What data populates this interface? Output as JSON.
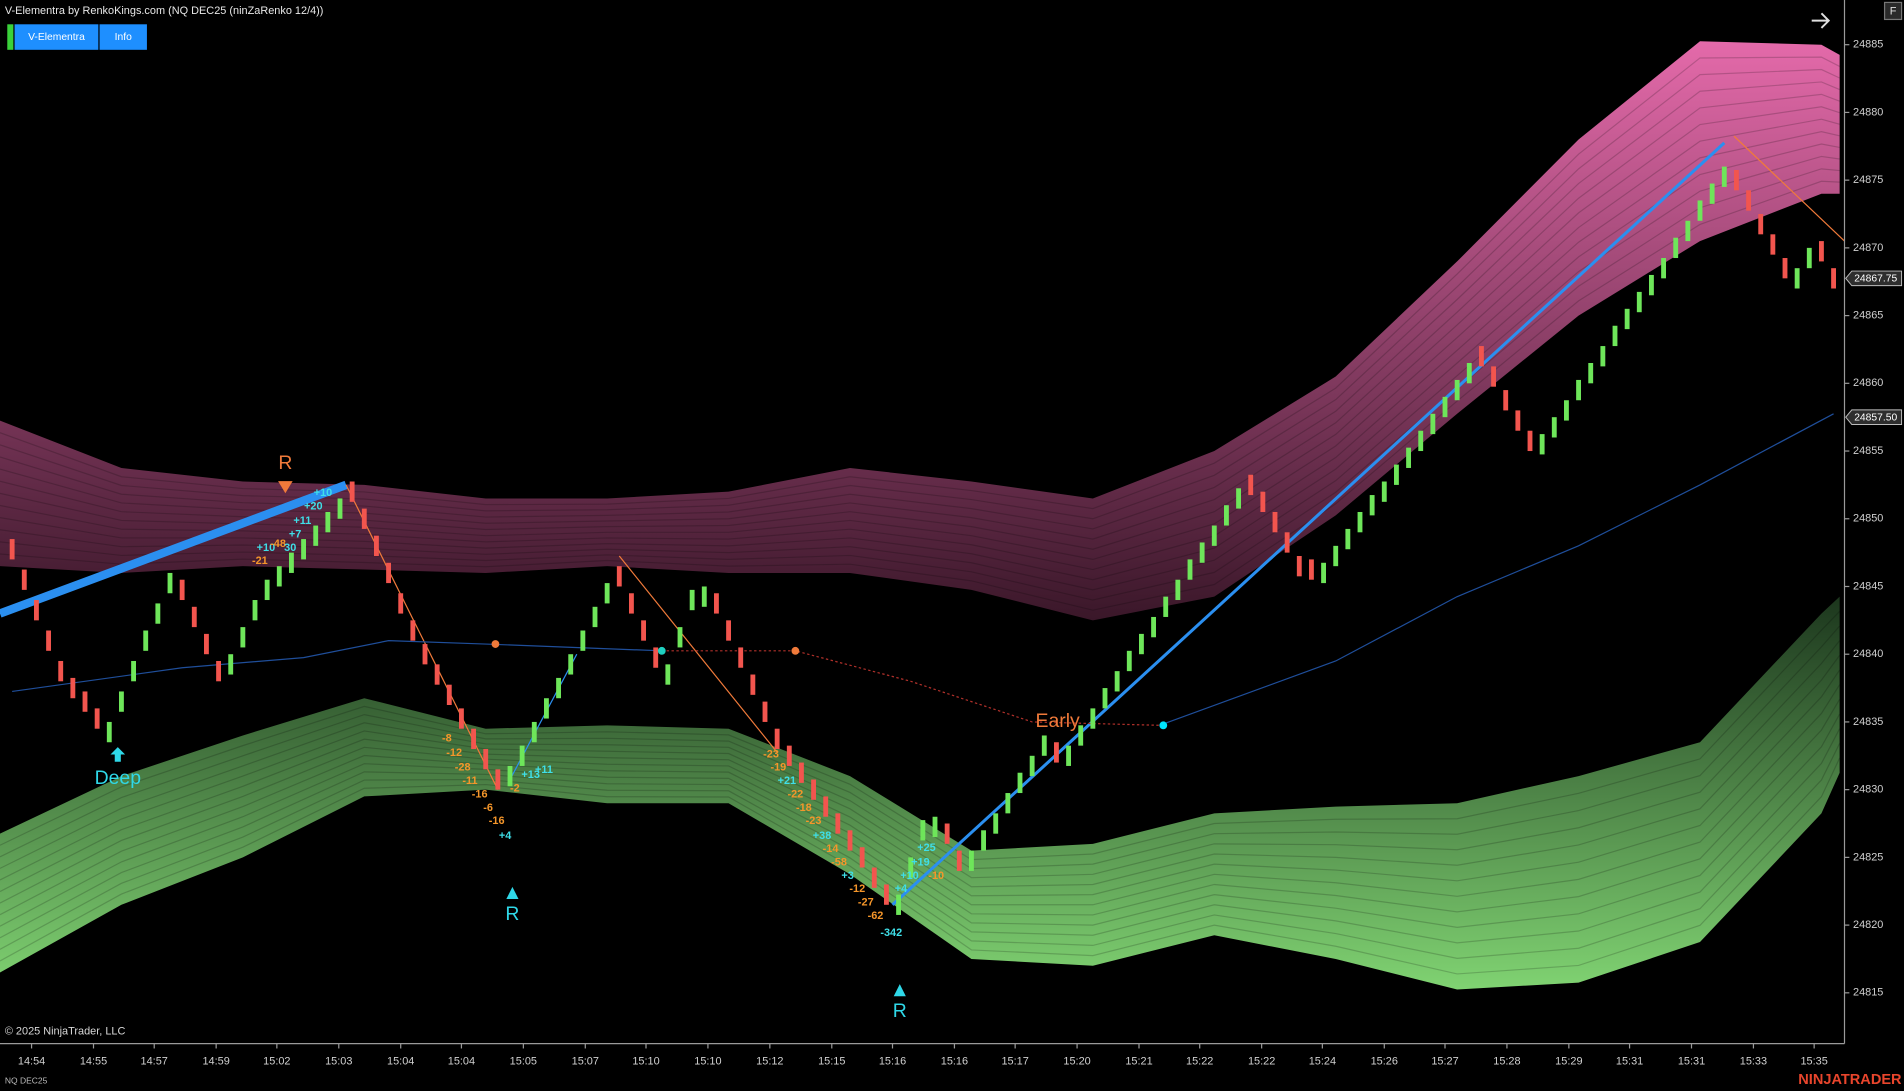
{
  "header": {
    "title": "V-Elementra by RenkoKings.com (NQ DEC25 (ninZaRenko 12/4))",
    "buttons": [
      "V-Elementra",
      "Info"
    ],
    "corner_button": "F"
  },
  "footer": {
    "copyright": "© 2025 NinjaTrader, LLC",
    "instrument": "NQ DEC25",
    "brand": "NINJATRADER"
  },
  "chart_data": {
    "type": "candlestick",
    "up_color": "#6ee65a",
    "down_color": "#f2554e",
    "xlim": [
      -1,
      150.9
    ],
    "ylim": [
      24811.25,
      24888.3
    ],
    "open": [
      24848.5,
      24846.25,
      24844,
      24841.75,
      24839.5,
      24838.25,
      24837.25,
      24836,
      24833.5,
      24835.75,
      24838,
      24840.25,
      24842.25,
      24844.5,
      24845.5,
      24843.5,
      24841.5,
      24839.5,
      24838.5,
      24840.5,
      24842.5,
      24844,
      24845,
      24846,
      24847,
      24848,
      24849,
      24850,
      24852.75,
      24850.75,
      24848.75,
      24846.75,
      24844.5,
      24842.5,
      24840.75,
      24839.25,
      24837.75,
      24836,
      24834.5,
      24833,
      24831.5,
      24830.25,
      24831.75,
      24833.5,
      24835.25,
      24836.75,
      24838.5,
      24840.25,
      24842,
      24843.75,
      24846.5,
      24844.5,
      24842.5,
      24840.5,
      24837.75,
      24840.5,
      24843.25,
      24843.5,
      24844.5,
      24842.5,
      24840.5,
      24838.5,
      24836.5,
      24834.5,
      24833.25,
      24832,
      24830.75,
      24829.5,
      24828.25,
      24827,
      24825.75,
      24824.25,
      24823,
      24820.75,
      24823.5,
      24826.25,
      24826.5,
      24827.5,
      24825.5,
      24824,
      24825.5,
      24826.75,
      24828.25,
      24829.75,
      24831,
      24832.5,
      24833.5,
      24831.75,
      24833.25,
      24834.5,
      24836,
      24837.25,
      24838.75,
      24840,
      24841.25,
      24842.75,
      24844,
      24845.5,
      24846.75,
      24848,
      24849.5,
      24850.75,
      24853.25,
      24852,
      24850.5,
      24849,
      24847.25,
      24847,
      24845.25,
      24846.5,
      24847.75,
      24849,
      24850.25,
      24851.25,
      24852.5,
      24853.75,
      24855,
      24856.25,
      24857.5,
      24858.75,
      24860,
      24862.75,
      24861.25,
      24859.5,
      24858,
      24856.5,
      24854.75,
      24856,
      24857.25,
      24858.75,
      24860,
      24861.25,
      24862.75,
      24864,
      24865.25,
      24866.5,
      24867.75,
      24869.25,
      24870.5,
      24872,
      24873.25,
      24874.5,
      24875.75,
      24874.25,
      24872.5,
      24871,
      24869.25,
      24867,
      24868.5,
      24870.5,
      24868.5
    ],
    "close": [
      24847,
      24844.75,
      24842.5,
      24840.25,
      24838,
      24836.75,
      24835.75,
      24834.5,
      24835,
      24837.25,
      24839.5,
      24841.75,
      24843.75,
      24846,
      24844,
      24842,
      24840,
      24838,
      24840,
      24842,
      24844,
      24845.5,
      24846.5,
      24847.5,
      24848.5,
      24849.5,
      24850.5,
      24851.5,
      24851.25,
      24849.25,
      24847.25,
      24845.25,
      24843,
      24841,
      24839.25,
      24837.75,
      24836.25,
      24834.5,
      24833,
      24831.5,
      24830,
      24831.75,
      24833.25,
      24835,
      24836.75,
      24838.25,
      24840,
      24841.75,
      24843.5,
      24845.25,
      24845,
      24843,
      24841,
      24839,
      24839.25,
      24842,
      24844.75,
      24845,
      24843,
      24841,
      24839,
      24837,
      24835,
      24833,
      24831.75,
      24830.5,
      24829.25,
      24828,
      24826.75,
      24825.5,
      24824.25,
      24822.75,
      24821.5,
      24822.25,
      24825,
      24827.75,
      24828,
      24826,
      24824,
      24825.5,
      24827,
      24828.25,
      24829.75,
      24831.25,
      24832.5,
      24834,
      24832,
      24833.25,
      24834.75,
      24836,
      24837.5,
      24838.75,
      24840.25,
      24841.5,
      24842.75,
      24844.25,
      24845.5,
      24847,
      24848.25,
      24849.5,
      24851,
      24852.25,
      24851.75,
      24850.5,
      24849,
      24847.5,
      24845.75,
      24845.5,
      24846.75,
      24848,
      24849.25,
      24850.5,
      24851.75,
      24852.75,
      24854,
      24855.25,
      24856.5,
      24857.75,
      24859,
      24860.25,
      24861.5,
      24861.25,
      24859.75,
      24858,
      24856.5,
      24855,
      24856.25,
      24857.5,
      24858.75,
      24860.25,
      24861.5,
      24862.75,
      24864.25,
      24865.5,
      24866.75,
      24868,
      24869.25,
      24870.75,
      24872,
      24873.5,
      24874.75,
      24876,
      24874.25,
      24872.75,
      24871,
      24869.5,
      24867.75,
      24868.5,
      24870,
      24869,
      24867
    ],
    "yticks": [
      24815,
      24820,
      24825,
      24830,
      24835,
      24840,
      24845,
      24850,
      24855,
      24860,
      24865,
      24870,
      24875,
      24880,
      24885
    ],
    "xticks": [
      {
        "value": 1.6,
        "label": "14:54"
      },
      {
        "value": 6.7,
        "label": "14:55"
      },
      {
        "value": 11.7,
        "label": "14:57"
      },
      {
        "value": 16.8,
        "label": "14:59"
      },
      {
        "value": 21.8,
        "label": "15:02"
      },
      {
        "value": 26.9,
        "label": "15:03"
      },
      {
        "value": 32,
        "label": "15:04"
      },
      {
        "value": 37,
        "label": "15:04"
      },
      {
        "value": 42.1,
        "label": "15:05"
      },
      {
        "value": 47.2,
        "label": "15:07"
      },
      {
        "value": 52.2,
        "label": "15:10"
      },
      {
        "value": 57.3,
        "label": "15:10"
      },
      {
        "value": 62.4,
        "label": "15:12"
      },
      {
        "value": 67.5,
        "label": "15:15"
      },
      {
        "value": 72.5,
        "label": "15:16"
      },
      {
        "value": 77.6,
        "label": "15:16"
      },
      {
        "value": 82.6,
        "label": "15:17"
      },
      {
        "value": 87.7,
        "label": "15:20"
      },
      {
        "value": 92.8,
        "label": "15:21"
      },
      {
        "value": 97.8,
        "label": "15:22"
      },
      {
        "value": 102.9,
        "label": "15:22"
      },
      {
        "value": 107.9,
        "label": "15:24"
      },
      {
        "value": 113,
        "label": "15:26"
      },
      {
        "value": 118,
        "label": "15:27"
      },
      {
        "value": 123.1,
        "label": "15:28"
      },
      {
        "value": 128.2,
        "label": "15:29"
      },
      {
        "value": 133.2,
        "label": "15:31"
      },
      {
        "value": 138.3,
        "label": "15:31"
      },
      {
        "value": 143.4,
        "label": "15:33"
      },
      {
        "value": 148.4,
        "label": "15:35"
      }
    ],
    "price_markers": [
      24867.75,
      {
        "value": 24857.5,
        "label": "24857.50"
      }
    ],
    "band_x": [
      -1,
      9,
      19,
      29,
      39,
      49,
      59,
      69,
      79,
      89,
      99,
      109,
      119,
      129,
      139,
      149,
      150.5
    ],
    "bands": [
      {
        "colors": [
          "#e46aaa",
          "#3a1729"
        ],
        "upper": [
          24857.25,
          24853.75,
          24852.75,
          24852.5,
          24851.5,
          24851.5,
          24852,
          24853.75,
          24852.75,
          24851.5,
          24855,
          24860.5,
          24869,
          24878,
          24885.25,
          24885,
          24884.25
        ],
        "lower": [
          24846.5,
          24846,
          24846.5,
          24846.25,
          24846,
          24846.5,
          24846,
          24846,
          24844.75,
          24842.5,
          24844.25,
          24850.25,
          24857.75,
          24865,
          24870.5,
          24874,
          24874
        ]
      },
      {
        "colors": [
          "#1c361d",
          "#80d372"
        ],
        "upper": [
          24826.75,
          24831,
          24834,
          24836.75,
          24834.5,
          24834.75,
          24834.5,
          24831,
          24825.5,
          24826,
          24828.25,
          24828.75,
          24829,
          24831,
          24833.5,
          24843,
          24844.25
        ],
        "lower": [
          24816.5,
          24821.5,
          24825,
          24829.5,
          24830,
          24829,
          24829,
          24823.75,
          24817.5,
          24817,
          24819.25,
          24817.5,
          24815.25,
          24815.75,
          24818.75,
          24828.25,
          24831.25
        ]
      }
    ],
    "lines": [
      {
        "color": "#2b8ff0",
        "width": 7,
        "dashed": false,
        "x": [
          -1,
          27.5
        ],
        "y": [
          24843,
          24852.5
        ]
      },
      {
        "color": "#2b8ff0",
        "width": 2.5,
        "dashed": false,
        "x": [
          72.5,
          141
        ],
        "y": [
          24821.5,
          24877.75
        ]
      },
      {
        "color": "#2b8ff0",
        "width": 1,
        "dashed": false,
        "x": [
          41,
          46.5
        ],
        "y": [
          24830.75,
          24840
        ]
      },
      {
        "color": "#f07a3a",
        "width": 1,
        "dashed": false,
        "x": [
          27.5,
          40
        ],
        "y": [
          24852.5,
          24830
        ]
      },
      {
        "color": "#f07a3a",
        "width": 1,
        "dashed": false,
        "x": [
          50,
          63
        ],
        "y": [
          24847.25,
          24832.75
        ]
      },
      {
        "color": "#f07a3a",
        "width": 1,
        "dashed": false,
        "x": [
          141.8,
          150.9
        ],
        "y": [
          24878.25,
          24870.5
        ]
      },
      {
        "color": "#1f4e9a",
        "width": 1,
        "dashed": false,
        "x": [
          0,
          14,
          24,
          31,
          39,
          53.5
        ],
        "y": [
          24837.25,
          24839,
          24839.75,
          24841,
          24840.75,
          24840.25
        ]
      },
      {
        "color": "#b0302a",
        "width": 1,
        "dashed": true,
        "x": [
          53.5,
          64.5,
          74,
          84,
          94.5
        ],
        "y": [
          24840.25,
          24840.25,
          24838,
          24835,
          24834.75
        ]
      },
      {
        "color": "#1f4e9a",
        "width": 1,
        "dashed": false,
        "x": [
          94.5,
          109,
          119,
          129,
          139,
          150
        ],
        "y": [
          24834.75,
          24839.5,
          24844.25,
          24848,
          24852.5,
          24857.75
        ]
      }
    ],
    "dots": [
      {
        "color": "#f07a3a",
        "x": 39.8,
        "y": 24840.75
      },
      {
        "color": "#f07a3a",
        "x": 64.5,
        "y": 24840.25
      },
      {
        "color": "#1fd0c0",
        "x": 53.5,
        "y": 24840.25
      },
      {
        "color": "#00e5ff",
        "x": 94.8,
        "y": 24834.75
      }
    ],
    "annotations": [
      {
        "text": "R",
        "color": "#f07a3a"
      },
      {
        "text": "Deep",
        "color": "#2fd8e8"
      },
      {
        "text": "R",
        "color": "#2fd8e8"
      },
      {
        "text": "R",
        "color": "#2fd8e8"
      },
      {
        "text": "Early",
        "color": "#f07a3a"
      },
      {
        "text": "+10",
        "color": "#3fdfe8"
      },
      {
        "text": "+20",
        "color": "#3fdfe8"
      },
      {
        "text": "+11",
        "color": "#3fdfe8"
      },
      {
        "text": "+7",
        "color": "#3fdfe8"
      },
      {
        "text": "+10",
        "color": "#3fdfe8"
      },
      {
        "text": "-48",
        "color": "#f5962a"
      },
      {
        "text": "30",
        "color": "#3fdfe8"
      },
      {
        "text": "-21",
        "color": "#f5962a"
      },
      {
        "text": "-8",
        "color": "#f5962a"
      },
      {
        "text": "-12",
        "color": "#f5962a"
      },
      {
        "text": "-28",
        "color": "#f5962a"
      },
      {
        "text": "-11",
        "color": "#f5962a"
      },
      {
        "text": "-16",
        "color": "#f5962a"
      },
      {
        "text": "-6",
        "color": "#f5962a"
      },
      {
        "text": "-16",
        "color": "#f5962a"
      },
      {
        "text": "+4",
        "color": "#3fdfe8"
      },
      {
        "text": "-2",
        "color": "#f5962a"
      },
      {
        "text": "+13",
        "color": "#3fdfe8"
      },
      {
        "text": "+11",
        "color": "#3fdfe8"
      },
      {
        "text": "-23",
        "color": "#f5962a"
      },
      {
        "text": "-19",
        "color": "#f5962a"
      },
      {
        "text": "+21",
        "color": "#3fdfe8"
      },
      {
        "text": "-22",
        "color": "#f5962a"
      },
      {
        "text": "-18",
        "color": "#f5962a"
      },
      {
        "text": "-23",
        "color": "#f5962a"
      },
      {
        "text": "+38",
        "color": "#3fdfe8"
      },
      {
        "text": "-14",
        "color": "#f5962a"
      },
      {
        "text": "-58",
        "color": "#f5962a"
      },
      {
        "text": "+3",
        "color": "#3fdfe8"
      },
      {
        "text": "-12",
        "color": "#f5962a"
      },
      {
        "text": "-27",
        "color": "#f5962a"
      },
      {
        "text": "-62",
        "color": "#f5962a"
      },
      {
        "text": "-342",
        "color": "#3fdfe8"
      },
      {
        "text": "+4",
        "color": "#3fdfe8"
      },
      {
        "text": "+10",
        "color": "#3fdfe8"
      },
      {
        "text": "+19",
        "color": "#3fdfe8"
      },
      {
        "text": "+25",
        "color": "#3fdfe8"
      },
      {
        "text": "-10",
        "color": "#f5962a"
      }
    ]
  }
}
